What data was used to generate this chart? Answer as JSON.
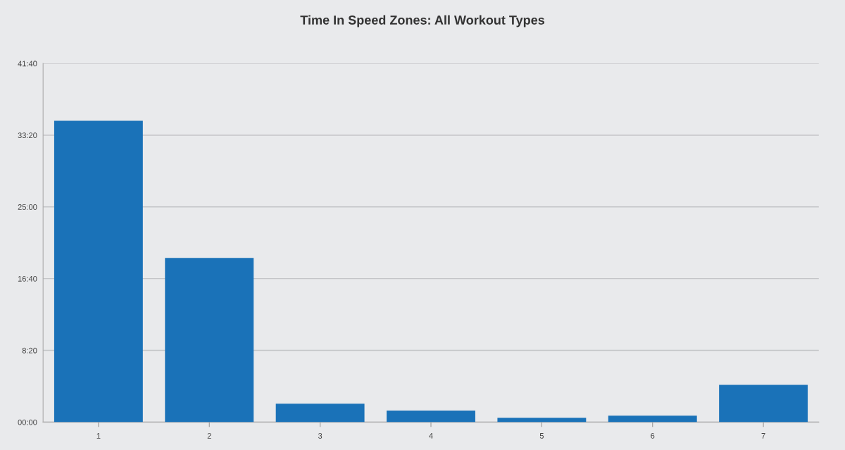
{
  "chart_data": {
    "type": "bar",
    "title": "Time In Speed Zones: All Workout Types",
    "categories": [
      "1",
      "2",
      "3",
      "4",
      "5",
      "6",
      "7"
    ],
    "values": [
      2100,
      1145,
      128,
      80,
      30,
      45,
      260
    ],
    "color": "#1a72b8",
    "ylim": [
      0,
      2500
    ],
    "yticks": [
      {
        "value": 0,
        "label": "00:00"
      },
      {
        "value": 500,
        "label": "8:20"
      },
      {
        "value": 1000,
        "label": "16:40"
      },
      {
        "value": 1500,
        "label": "25:00"
      },
      {
        "value": 2000,
        "label": "33:20"
      },
      {
        "value": 2500,
        "label": "41:40"
      }
    ],
    "grid": "y"
  }
}
